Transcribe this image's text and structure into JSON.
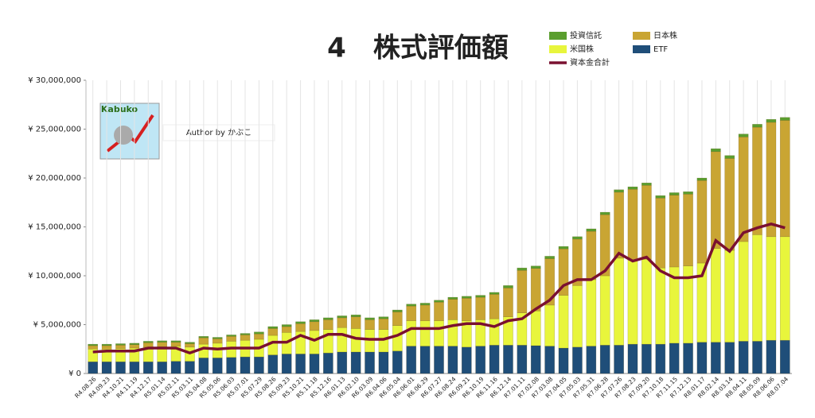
{
  "chart_data": {
    "type": "bar",
    "stacked": true,
    "title": "4　株式評価額",
    "logo_text": "Kabuko",
    "author": "Author by かぶこ",
    "categories": [
      "R4.08.26",
      "R4.09.23",
      "R4.10.21",
      "R4.11.19",
      "R4.12.17",
      "R5.01.14",
      "R5.02.11",
      "R5.03.11",
      "R5.04.08",
      "R5.05.06",
      "R5.06.03",
      "R5.07.01",
      "R5.07.29",
      "R5.08.26",
      "R5.09.23",
      "R5.10.21",
      "R5.11.18",
      "R5.12.16",
      "R6.01.13",
      "R6.02.10",
      "R6.03.09",
      "R6.04.06",
      "R6.05.04",
      "R6.06.01",
      "R6.06.29",
      "R6.07.27",
      "R6.08.24",
      "R6.09.21",
      "R6.10.19",
      "R6.11.16",
      "R6.12.14",
      "R7.01.11",
      "R7.02.08",
      "R7.03.08",
      "R7.04.05",
      "R7.05.03",
      "R7.05.31",
      "R7.06.28",
      "R7.07.26",
      "R7.08.23",
      "R7.09.20",
      "R7.10.18",
      "R7.11.15",
      "R7.12.13",
      "R8.01.17",
      "R8.02.14",
      "R8.03.14",
      "R8.04.11",
      "R8.05.09",
      "R8.06.06",
      "R8.07.04"
    ],
    "series": [
      {
        "name": "投資信託",
        "color": "#5a9e2e",
        "values": [
          150000,
          150000,
          150000,
          150000,
          150000,
          150000,
          150000,
          150000,
          150000,
          150000,
          150000,
          150000,
          200000,
          200000,
          200000,
          200000,
          200000,
          200000,
          200000,
          200000,
          200000,
          200000,
          200000,
          200000,
          200000,
          200000,
          200000,
          200000,
          200000,
          200000,
          250000,
          250000,
          250000,
          250000,
          250000,
          250000,
          250000,
          250000,
          250000,
          250000,
          250000,
          250000,
          250000,
          250000,
          250000,
          300000,
          300000,
          300000,
          300000,
          300000,
          300000
        ]
      },
      {
        "name": "日本株",
        "color": "#c9a533",
        "values": [
          350000,
          350000,
          350000,
          350000,
          450000,
          450000,
          400000,
          350000,
          650000,
          450000,
          500000,
          550000,
          550000,
          700000,
          600000,
          800000,
          900000,
          1000000,
          1000000,
          1200000,
          1000000,
          1100000,
          1400000,
          1500000,
          1600000,
          1900000,
          2100000,
          2300000,
          2300000,
          2500000,
          2950000,
          4350000,
          4350000,
          4750000,
          4750000,
          4750000,
          4950000,
          6250000,
          6750000,
          7250000,
          7550000,
          7150000,
          7350000,
          7350000,
          8450000,
          9900000,
          9400000,
          10700000,
          11000000,
          11700000,
          11900000
        ]
      },
      {
        "name": "米国株",
        "color": "#e8f53c",
        "values": [
          1300000,
          1300000,
          1350000,
          1400000,
          1500000,
          1550000,
          1550000,
          1450000,
          1400000,
          1500000,
          1650000,
          1700000,
          1800000,
          2000000,
          2200000,
          2300000,
          2400000,
          2400000,
          2500000,
          2400000,
          2300000,
          2300000,
          2600000,
          2600000,
          2600000,
          2600000,
          2700000,
          2700000,
          2700000,
          2700000,
          2900000,
          3300000,
          3550000,
          4200000,
          5400000,
          6300000,
          6800000,
          7100000,
          8900000,
          8600000,
          8700000,
          7800000,
          7800000,
          7900000,
          8100000,
          9600000,
          9400000,
          10200000,
          10900000,
          10600000,
          10600000
        ]
      },
      {
        "name": "ETF",
        "color": "#1f4e79",
        "values": [
          1200000,
          1200000,
          1200000,
          1200000,
          1200000,
          1200000,
          1250000,
          1250000,
          1600000,
          1600000,
          1650000,
          1700000,
          1700000,
          1900000,
          2000000,
          2000000,
          2000000,
          2100000,
          2200000,
          2200000,
          2200000,
          2200000,
          2300000,
          2800000,
          2800000,
          2800000,
          2800000,
          2700000,
          2800000,
          2900000,
          2900000,
          2900000,
          2850000,
          2800000,
          2600000,
          2700000,
          2800000,
          2900000,
          2900000,
          3000000,
          3000000,
          3000000,
          3100000,
          3100000,
          3200000,
          3200000,
          3200000,
          3300000,
          3300000,
          3400000,
          3400000
        ]
      },
      {
        "name": "資本金合計",
        "type": "line",
        "color": "#7a1030",
        "values": [
          2200000,
          2300000,
          2300000,
          2300000,
          2600000,
          2600000,
          2600000,
          2100000,
          2600000,
          2500000,
          2600000,
          2600000,
          2600000,
          3200000,
          3200000,
          3900000,
          3400000,
          4000000,
          4000000,
          3600000,
          3500000,
          3500000,
          3900000,
          4600000,
          4600000,
          4600000,
          4900000,
          5100000,
          5100000,
          4800000,
          5400000,
          5600000,
          6600000,
          7500000,
          9000000,
          9600000,
          9600000,
          10500000,
          12300000,
          11500000,
          11900000,
          10500000,
          9800000,
          9800000,
          10000000,
          13600000,
          12500000,
          14400000,
          14900000,
          15300000,
          14900000
        ]
      }
    ],
    "ylim": [
      0,
      30000000
    ],
    "yticks": [
      {
        "value": 0,
        "label": "¥ 0"
      },
      {
        "value": 5000000,
        "label": "¥ 5,000,000"
      },
      {
        "value": 10000000,
        "label": "¥ 10,000,000"
      },
      {
        "value": 15000000,
        "label": "¥ 15,000,000"
      },
      {
        "value": 20000000,
        "label": "¥ 20,000,000"
      },
      {
        "value": 25000000,
        "label": "¥ 25,000,000"
      },
      {
        "value": 30000000,
        "label": "¥ 30,000,000"
      }
    ],
    "grid": true
  }
}
